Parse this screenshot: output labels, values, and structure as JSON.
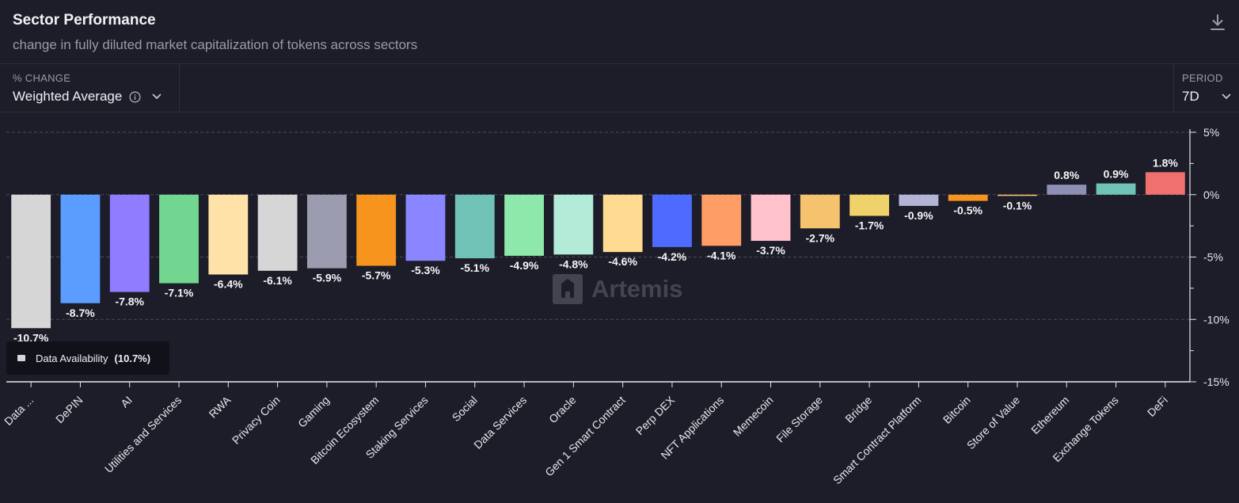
{
  "header": {
    "title": "Sector Performance",
    "subtitle": "change in fully diluted market capitalization of tokens across sectors"
  },
  "controls": {
    "change": {
      "caption": "% CHANGE",
      "value": "Weighted Average"
    },
    "period": {
      "caption": "PERIOD",
      "value": "7D"
    }
  },
  "tooltip": {
    "label": "Data Availability",
    "value": "(10.7%)"
  },
  "watermark": {
    "text": "Artemis"
  },
  "icons": {
    "download": "download-icon",
    "info": "info-icon",
    "chevron": "chevron-down-icon",
    "logo": "artemis-logo-icon"
  },
  "chart_data": {
    "type": "bar",
    "title": "Sector Performance",
    "subtitle": "change in fully diluted market capitalization of tokens across sectors",
    "categories": [
      "Data ...",
      "DePIN",
      "AI",
      "Utilities and Services",
      "RWA",
      "Privacy Coin",
      "Gaming",
      "Bitcoin Ecosystem",
      "Staking Services",
      "Social",
      "Data Services",
      "Oracle",
      "Gen 1 Smart Contract",
      "Perp DEX",
      "NFT Applications",
      "Memecoin",
      "File Storage",
      "Bridge",
      "Smart Contract Platform",
      "Bitcoin",
      "Store of Value",
      "Ethereum",
      "Exchange Tokens",
      "DeFi"
    ],
    "values": [
      -10.7,
      -8.7,
      -7.8,
      -7.1,
      -6.4,
      -6.1,
      -5.9,
      -5.7,
      -5.3,
      -5.1,
      -4.9,
      -4.8,
      -4.6,
      -4.2,
      -4.1,
      -3.7,
      -2.7,
      -1.7,
      -0.9,
      -0.5,
      -0.1,
      0.8,
      0.9,
      1.8
    ],
    "data_labels": [
      "-10.7%",
      "-8.7%",
      "-7.8%",
      "-7.1%",
      "-6.4%",
      "-6.1%",
      "-5.9%",
      "-5.7%",
      "-5.3%",
      "-5.1%",
      "-4.9%",
      "-4.8%",
      "-4.6%",
      "-4.2%",
      "-4.1%",
      "-3.7%",
      "-2.7%",
      "-1.7%",
      "-0.9%",
      "-0.5%",
      "-0.1%",
      "0.8%",
      "0.9%",
      "1.8%"
    ],
    "colors": [
      "#d6d6d6",
      "#5b9cff",
      "#8f7cff",
      "#73d690",
      "#ffe2a8",
      "#d6d6d6",
      "#9b9caf",
      "#f7941d",
      "#8a86ff",
      "#6fc2b5",
      "#8ee8ab",
      "#b3ead8",
      "#ffdb91",
      "#4f6bff",
      "#ff9d66",
      "#ffc2cc",
      "#f5c26e",
      "#f0d26a",
      "#b4b5d6",
      "#f7941d",
      "#f5c26e",
      "#8d8fb5",
      "#6fc2b5",
      "#f0706e"
    ],
    "y_axis": {
      "min": -15,
      "max": 5,
      "ticks": [
        5,
        0,
        -5,
        -10,
        -15
      ],
      "tick_labels": [
        "5%",
        "0%",
        "-5%",
        "-10%",
        "-15%"
      ],
      "position": "right"
    },
    "grid": true,
    "legend": "none"
  }
}
